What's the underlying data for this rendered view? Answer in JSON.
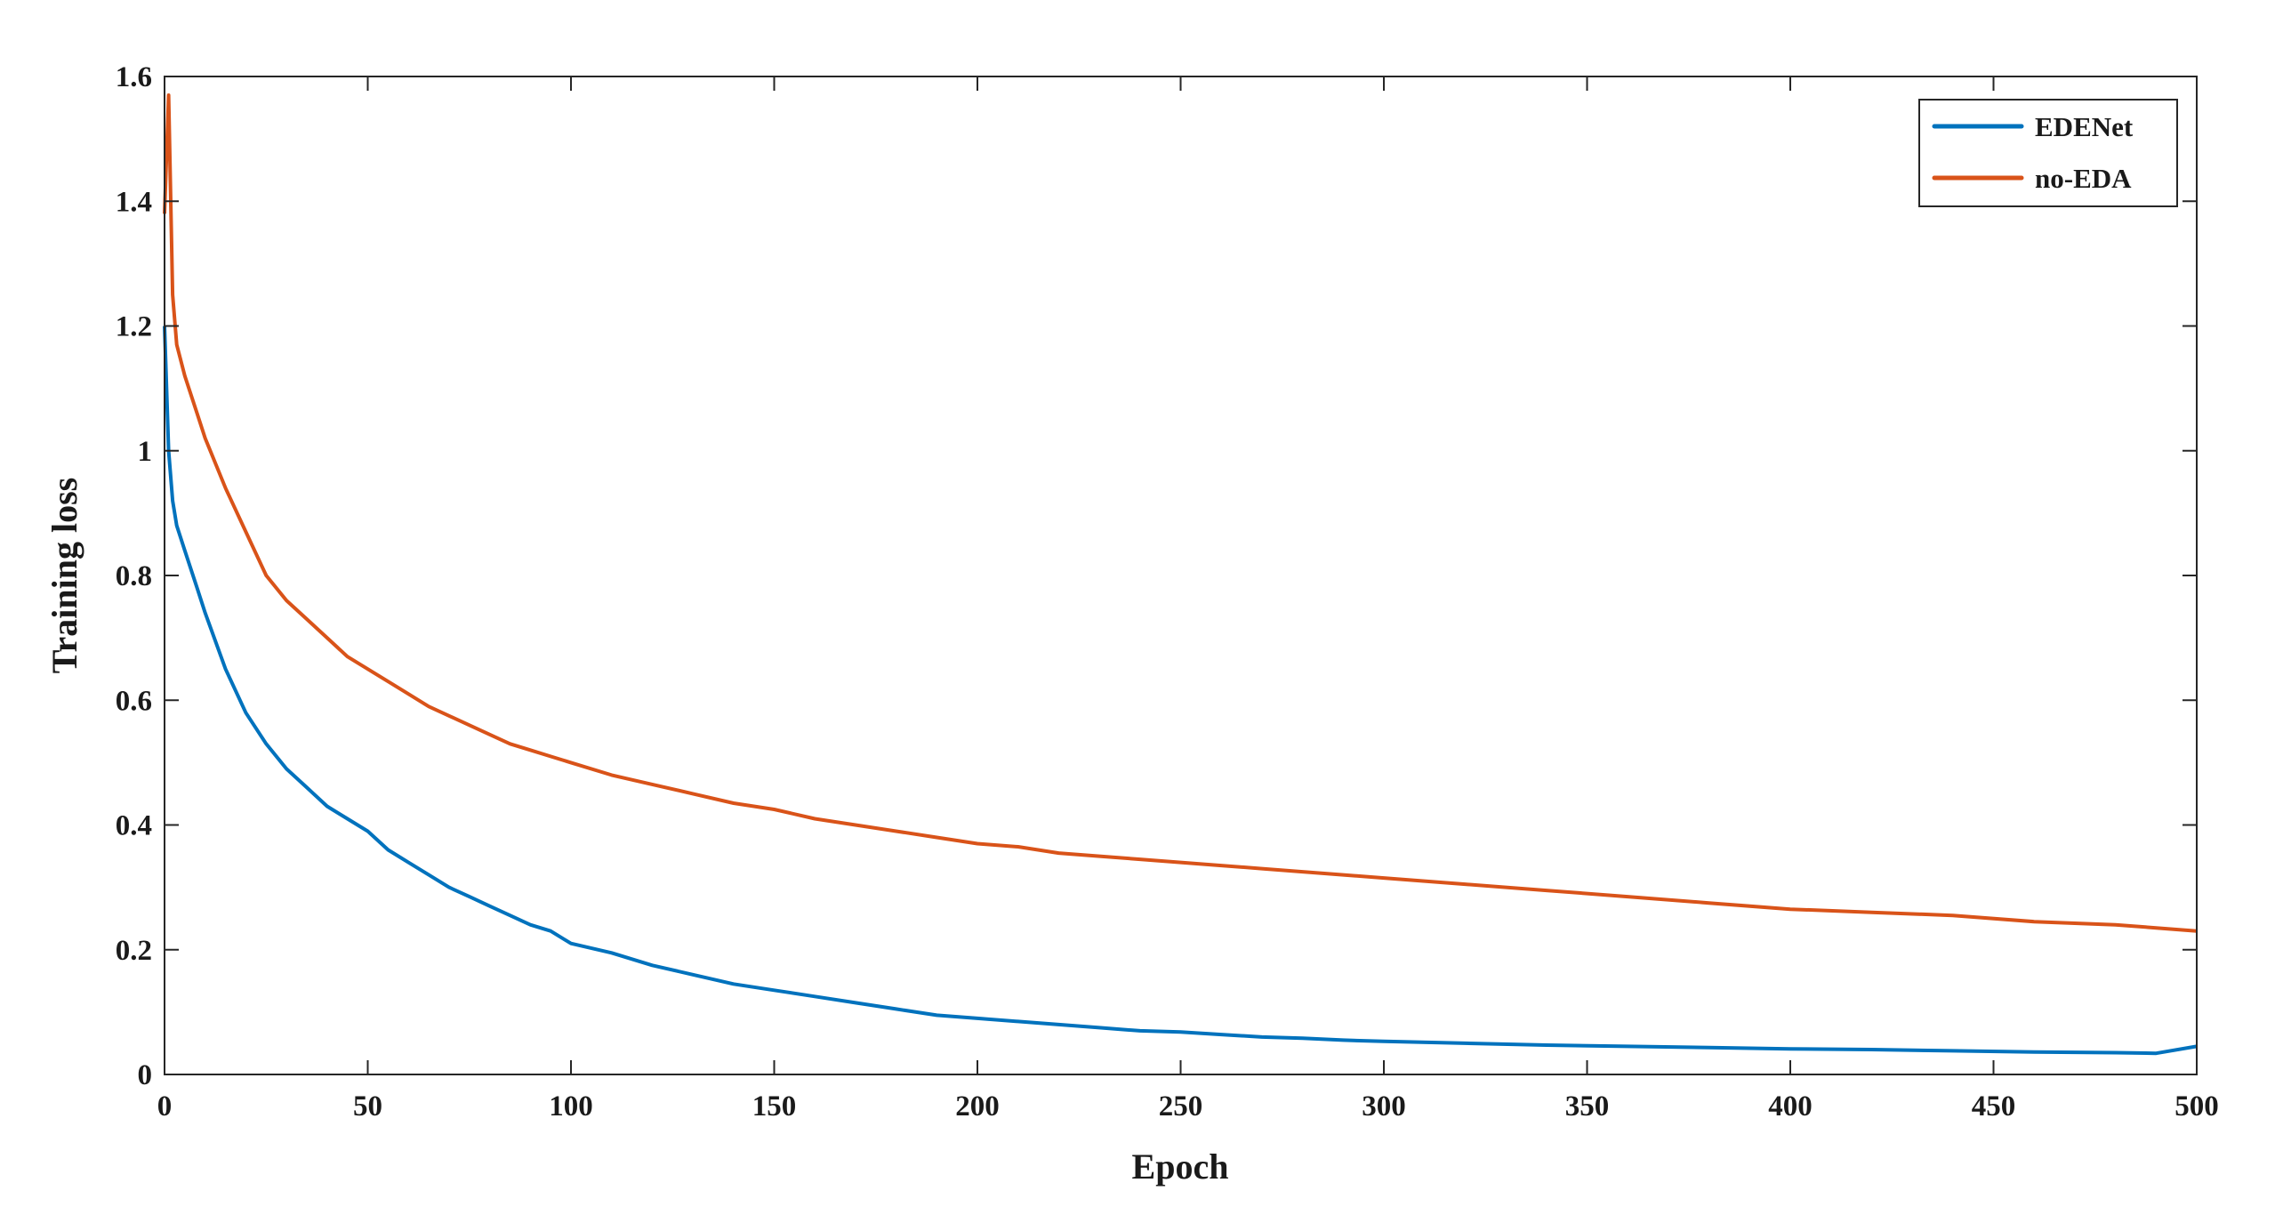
{
  "chart_data": {
    "type": "line",
    "xlabel": "Epoch",
    "ylabel": "Training loss",
    "xlim": [
      0,
      500
    ],
    "ylim": [
      0,
      1.6
    ],
    "x_ticks": [
      "0",
      "50",
      "100",
      "150",
      "200",
      "250",
      "300",
      "350",
      "400",
      "450",
      "500"
    ],
    "y_ticks": [
      "0",
      "0.2",
      "0.4",
      "0.6",
      "0.8",
      "1",
      "1.2",
      "1.4",
      "1.6"
    ],
    "grid": false,
    "legend_position": "top-right",
    "series": [
      {
        "name": "EDENet",
        "color": "#0072BD",
        "x": [
          0,
          1,
          2,
          3,
          5,
          8,
          10,
          15,
          20,
          25,
          30,
          35,
          40,
          45,
          50,
          55,
          60,
          65,
          70,
          75,
          80,
          85,
          90,
          95,
          100,
          110,
          120,
          130,
          140,
          150,
          160,
          170,
          180,
          190,
          200,
          210,
          220,
          230,
          240,
          250,
          260,
          270,
          280,
          290,
          300,
          320,
          340,
          360,
          380,
          400,
          420,
          440,
          460,
          480,
          490,
          500
        ],
        "y": [
          1.2,
          1.0,
          0.92,
          0.88,
          0.84,
          0.78,
          0.74,
          0.65,
          0.58,
          0.53,
          0.49,
          0.46,
          0.43,
          0.41,
          0.39,
          0.36,
          0.34,
          0.32,
          0.3,
          0.285,
          0.27,
          0.255,
          0.24,
          0.23,
          0.21,
          0.195,
          0.175,
          0.16,
          0.145,
          0.135,
          0.125,
          0.115,
          0.105,
          0.095,
          0.09,
          0.085,
          0.08,
          0.075,
          0.07,
          0.068,
          0.064,
          0.06,
          0.058,
          0.055,
          0.053,
          0.05,
          0.047,
          0.045,
          0.043,
          0.041,
          0.04,
          0.038,
          0.036,
          0.035,
          0.034,
          0.045
        ]
      },
      {
        "name": "no-EDA",
        "color": "#D95319",
        "x": [
          0,
          1,
          2,
          3,
          5,
          8,
          10,
          15,
          20,
          25,
          30,
          35,
          40,
          45,
          50,
          55,
          60,
          65,
          70,
          75,
          80,
          85,
          90,
          95,
          100,
          110,
          120,
          130,
          140,
          150,
          160,
          170,
          180,
          190,
          200,
          210,
          220,
          230,
          240,
          250,
          260,
          270,
          280,
          290,
          300,
          320,
          340,
          360,
          380,
          400,
          420,
          440,
          460,
          480,
          490,
          500
        ],
        "y": [
          1.38,
          1.57,
          1.25,
          1.17,
          1.12,
          1.06,
          1.02,
          0.94,
          0.87,
          0.8,
          0.76,
          0.73,
          0.7,
          0.67,
          0.65,
          0.63,
          0.61,
          0.59,
          0.575,
          0.56,
          0.545,
          0.53,
          0.52,
          0.51,
          0.5,
          0.48,
          0.465,
          0.45,
          0.435,
          0.425,
          0.41,
          0.4,
          0.39,
          0.38,
          0.37,
          0.365,
          0.355,
          0.35,
          0.345,
          0.34,
          0.335,
          0.33,
          0.325,
          0.32,
          0.315,
          0.305,
          0.295,
          0.285,
          0.275,
          0.265,
          0.26,
          0.255,
          0.245,
          0.24,
          0.235,
          0.23
        ]
      }
    ]
  }
}
